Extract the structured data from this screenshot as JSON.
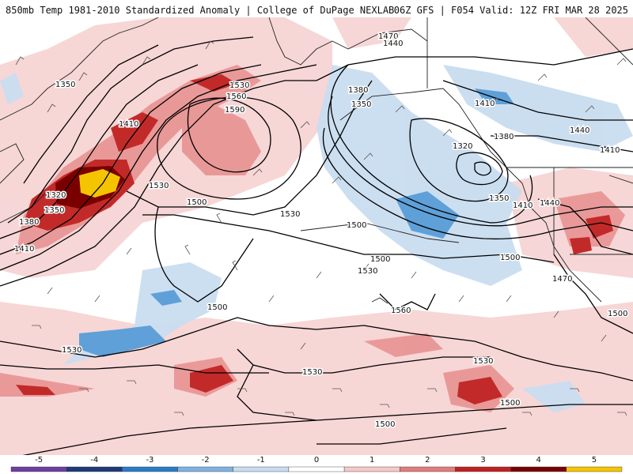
{
  "header": {
    "title_left": "850mb Temp 1981-2010 Standardized Anomaly | College of DuPage NEXLAB",
    "title_right": "06Z GFS | F054 Valid: 12Z FRI MAR 28 2025"
  },
  "contour_labels": [
    "1350",
    "1410",
    "1320",
    "1350",
    "1380",
    "1410",
    "1530",
    "1560",
    "1590",
    "1530",
    "1500",
    "1530",
    "1470",
    "1440",
    "1380",
    "1350",
    "1410",
    "1320",
    "1380",
    "1440",
    "1410",
    "1440",
    "1410",
    "1350",
    "1500",
    "1500",
    "1500",
    "1530",
    "1470",
    "1500",
    "1500",
    "1560",
    "1530",
    "1530",
    "1500",
    "1500",
    "1530"
  ],
  "legend": {
    "ticks": [
      "-5",
      "-4",
      "-3",
      "-2",
      "-1",
      "0",
      "1",
      "2",
      "3",
      "4",
      "5"
    ],
    "colors": [
      "#6b3fa0",
      "#1e3a7a",
      "#2a7ac9",
      "#7fb2e0",
      "#c7dcef",
      "#ffffff",
      "#f4c9c9",
      "#e07d7d",
      "#c02020",
      "#7a0000",
      "#f5c400"
    ]
  },
  "colors": {
    "border_line": "#222222",
    "height_contour": "#000000",
    "wind_barb": "#444444"
  }
}
